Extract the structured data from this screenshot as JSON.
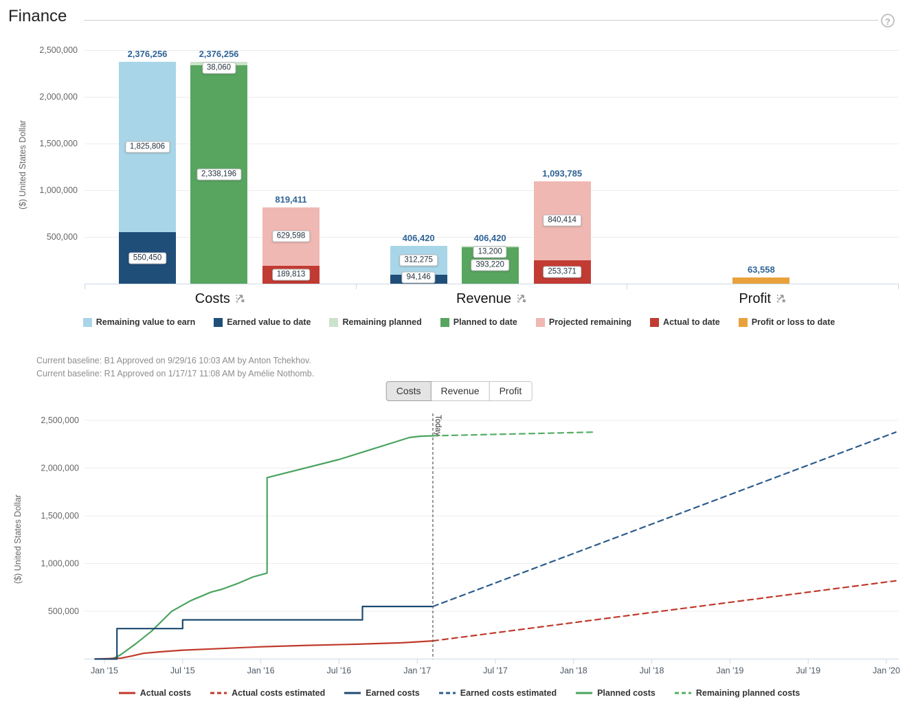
{
  "page": {
    "title": "Finance",
    "help_glyph": "?"
  },
  "baselines": [
    "Current baseline: B1 Approved on 9/29/16 10:03 AM by Anton Tchekhov.",
    "Current baseline: R1 Approved on 1/17/17 11:08 AM by Amélie Nothomb."
  ],
  "tabs": [
    {
      "label": "Costs",
      "active": true
    },
    {
      "label": "Revenue",
      "active": false
    },
    {
      "label": "Profit",
      "active": false
    }
  ],
  "colors": {
    "remaining_value_to_earn": "#a8d5e8",
    "earned_value_to_date": "#1f4e79",
    "remaining_planned": "#cbe3cb",
    "planned_to_date": "#57a55f",
    "projected_remaining": "#f0b8b3",
    "actual_to_date": "#c23b32",
    "profit_or_loss_to_date": "#e9a23b",
    "total_label_text": "#2f6496",
    "line_actual": "#c0392b",
    "line_earned": "#1d4a70",
    "line_earned_est": "#2b5c8c",
    "line_planned": "#4aa35e",
    "line_remaining_planned": "#53ad62"
  },
  "chart_data": [
    {
      "type": "bar",
      "stacked": true,
      "ylabel": "($) United States Dollar",
      "ylim": [
        0,
        2500000
      ],
      "grid": true,
      "yticks": [
        {
          "v": 500000,
          "label": "500,000"
        },
        {
          "v": 1000000,
          "label": "1,000,000"
        },
        {
          "v": 1500000,
          "label": "1,500,000"
        },
        {
          "v": 2000000,
          "label": "2,000,000"
        },
        {
          "v": 2500000,
          "label": "2,500,000"
        }
      ],
      "groups": [
        {
          "label": "Costs",
          "bars": [
            {
              "slot": 0,
              "total": 2376256,
              "segments": [
                {
                  "name": "Earned value to date",
                  "value": 550450,
                  "color": "#1f4e79",
                  "show_label": true
                },
                {
                  "name": "Remaining value to earn",
                  "value": 1825806,
                  "color": "#a8d5e8",
                  "show_label": true
                }
              ]
            },
            {
              "slot": 1,
              "total": 2376256,
              "segments": [
                {
                  "name": "Planned to date",
                  "value": 2338196,
                  "color": "#57a55f",
                  "show_label": true
                },
                {
                  "name": "Remaining planned",
                  "value": 38060,
                  "color": "#cbe3cb",
                  "show_label": true
                }
              ]
            },
            {
              "slot": 2,
              "total": 819411,
              "segments": [
                {
                  "name": "Actual to date",
                  "value": 189813,
                  "color": "#c23b32",
                  "show_label": true
                },
                {
                  "name": "Projected remaining",
                  "value": 629598,
                  "color": "#f0b8b3",
                  "show_label": true
                }
              ]
            }
          ]
        },
        {
          "label": "Revenue",
          "bars": [
            {
              "slot": 0,
              "total": 406420,
              "segments": [
                {
                  "name": "Earned value to date",
                  "value": 94146,
                  "color": "#1f4e79",
                  "show_label": true
                },
                {
                  "name": "Remaining value to earn",
                  "value": 312275,
                  "color": "#a8d5e8",
                  "show_label": true
                }
              ]
            },
            {
              "slot": 1,
              "total": 406420,
              "segments": [
                {
                  "name": "Planned to date",
                  "value": 393220,
                  "color": "#57a55f",
                  "show_label": true
                },
                {
                  "name": "Remaining planned",
                  "value": 13200,
                  "color": "#cbe3cb",
                  "show_label": true
                }
              ]
            },
            {
              "slot": 2,
              "total": 1093785,
              "segments": [
                {
                  "name": "Actual to date",
                  "value": 253371,
                  "color": "#c23b32",
                  "show_label": true
                },
                {
                  "name": "Projected remaining",
                  "value": 840414,
                  "color": "#f0b8b3",
                  "show_label": true
                }
              ]
            }
          ]
        },
        {
          "label": "Profit",
          "bars": [
            {
              "slot": 1,
              "total": 63558,
              "segments": [
                {
                  "name": "Profit or loss to date",
                  "value": 63558,
                  "color": "#e9a23b",
                  "show_label": false
                }
              ]
            }
          ]
        }
      ],
      "legend": [
        {
          "label": "Remaining value to earn",
          "color": "#a8d5e8"
        },
        {
          "label": "Earned value to date",
          "color": "#1f4e79"
        },
        {
          "label": "Remaining planned",
          "color": "#cbe3cb"
        },
        {
          "label": "Planned to date",
          "color": "#57a55f"
        },
        {
          "label": "Projected remaining",
          "color": "#f0b8b3"
        },
        {
          "label": "Actual to date",
          "color": "#c23b32"
        },
        {
          "label": "Profit or loss to date",
          "color": "#e9a23b"
        }
      ]
    },
    {
      "type": "line",
      "ylabel": "($) United States Dollar",
      "ylim": [
        0,
        2500000
      ],
      "xlim": [
        2014.93,
        2020.08
      ],
      "grid": true,
      "legend_position": "bottom",
      "yticks": [
        {
          "v": 500000,
          "label": "500,000"
        },
        {
          "v": 1000000,
          "label": "1,000,000"
        },
        {
          "v": 1500000,
          "label": "1,500,000"
        },
        {
          "v": 2000000,
          "label": "2,000,000"
        },
        {
          "v": 2500000,
          "label": "2,500,000"
        }
      ],
      "xticks": [
        {
          "t": 2015.0,
          "label": "Jan '15"
        },
        {
          "t": 2015.5,
          "label": "Jul '15"
        },
        {
          "t": 2016.0,
          "label": "Jan '16"
        },
        {
          "t": 2016.5,
          "label": "Jul '16"
        },
        {
          "t": 2017.0,
          "label": "Jan '17"
        },
        {
          "t": 2017.5,
          "label": "Jul '17"
        },
        {
          "t": 2018.0,
          "label": "Jan '18"
        },
        {
          "t": 2018.5,
          "label": "Jul '18"
        },
        {
          "t": 2019.0,
          "label": "Jan '19"
        },
        {
          "t": 2019.5,
          "label": "Jul '19"
        },
        {
          "t": 2020.0,
          "label": "Jan '20"
        }
      ],
      "today": {
        "t": 2017.1,
        "label": "Today"
      },
      "series": [
        {
          "name": "Planned costs",
          "color": "#4aa35e",
          "dash": false,
          "points": [
            [
              2015.02,
              0
            ],
            [
              2015.06,
              10000
            ],
            [
              2015.1,
              40000
            ],
            [
              2015.2,
              160000
            ],
            [
              2015.3,
              290000
            ],
            [
              2015.43,
              500000
            ],
            [
              2015.55,
              610000
            ],
            [
              2015.68,
              700000
            ],
            [
              2015.75,
              730000
            ],
            [
              2015.85,
              790000
            ],
            [
              2015.95,
              860000
            ],
            [
              2016.04,
              900000
            ],
            [
              2016.04,
              1900000
            ],
            [
              2016.5,
              2090000
            ],
            [
              2016.95,
              2320000
            ],
            [
              2017.02,
              2334000
            ],
            [
              2017.1,
              2338196
            ]
          ]
        },
        {
          "name": "Actual costs",
          "color": "#c0392b",
          "dash": false,
          "points": [
            [
              2014.94,
              0
            ],
            [
              2015.1,
              8000
            ],
            [
              2015.17,
              30000
            ],
            [
              2015.25,
              60000
            ],
            [
              2015.35,
              75000
            ],
            [
              2015.5,
              93000
            ],
            [
              2015.75,
              110000
            ],
            [
              2016.0,
              128000
            ],
            [
              2016.3,
              143000
            ],
            [
              2016.6,
              155000
            ],
            [
              2016.9,
              170000
            ],
            [
              2017.1,
              189813
            ]
          ]
        },
        {
          "name": "Earned costs",
          "color": "#1d4a70",
          "dash": false,
          "points": [
            [
              2014.94,
              0
            ],
            [
              2015.08,
              0
            ],
            [
              2015.08,
              319000
            ],
            [
              2015.5,
              319000
            ],
            [
              2015.5,
              410000
            ],
            [
              2016.65,
              410000
            ],
            [
              2016.65,
              550450
            ],
            [
              2017.1,
              550450
            ]
          ]
        },
        {
          "name": "Actual costs estimated",
          "color": "#c0392b",
          "dash": true,
          "points": [
            [
              2017.1,
              189813
            ],
            [
              2020.06,
              819411
            ]
          ]
        },
        {
          "name": "Earned costs estimated",
          "color": "#2b5c8c",
          "dash": true,
          "points": [
            [
              2017.1,
              550450
            ],
            [
              2020.06,
              2376256
            ]
          ]
        },
        {
          "name": "Remaining planned costs",
          "color": "#53ad62",
          "dash": true,
          "points": [
            [
              2017.1,
              2338196
            ],
            [
              2018.12,
              2376256
            ]
          ]
        }
      ],
      "legend": [
        {
          "label": "Actual costs",
          "color": "#c0392b",
          "dash": false
        },
        {
          "label": "Actual costs estimated",
          "color": "#c0392b",
          "dash": true
        },
        {
          "label": "Earned costs",
          "color": "#1d4a70",
          "dash": false
        },
        {
          "label": "Earned costs estimated",
          "color": "#2b5c8c",
          "dash": true
        },
        {
          "label": "Planned costs",
          "color": "#4aa35e",
          "dash": false
        },
        {
          "label": "Remaining planned costs",
          "color": "#53ad62",
          "dash": true
        }
      ]
    }
  ]
}
